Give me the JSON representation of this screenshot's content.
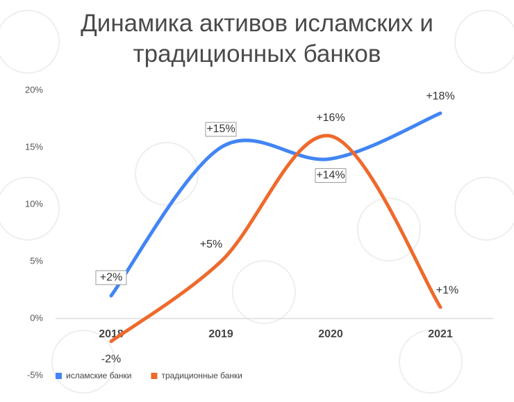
{
  "chart_data": {
    "type": "line",
    "title": "Динамика активов исламских и традиционных банков",
    "categories": [
      "2018",
      "2019",
      "2020",
      "2021"
    ],
    "series": [
      {
        "name": "исламские банки",
        "color": "#4285f4",
        "values": [
          2,
          15,
          14,
          18
        ],
        "value_labels": [
          "+2%",
          "+15%",
          "+14%",
          "+18%"
        ]
      },
      {
        "name": "традиционные банки",
        "color": "#ee6a2c",
        "values": [
          -2,
          5,
          16,
          1
        ],
        "value_labels": [
          "-2%",
          "+5%",
          "+16%",
          "+1%"
        ]
      }
    ],
    "ylim": [
      -5,
      20
    ],
    "yticks": [
      {
        "value": -5,
        "label": "-5%"
      },
      {
        "value": 0,
        "label": "0%"
      },
      {
        "value": 5,
        "label": "5%"
      },
      {
        "value": 10,
        "label": "10%"
      },
      {
        "value": 15,
        "label": "15%"
      },
      {
        "value": 20,
        "label": "20%"
      }
    ],
    "smooth": true
  }
}
